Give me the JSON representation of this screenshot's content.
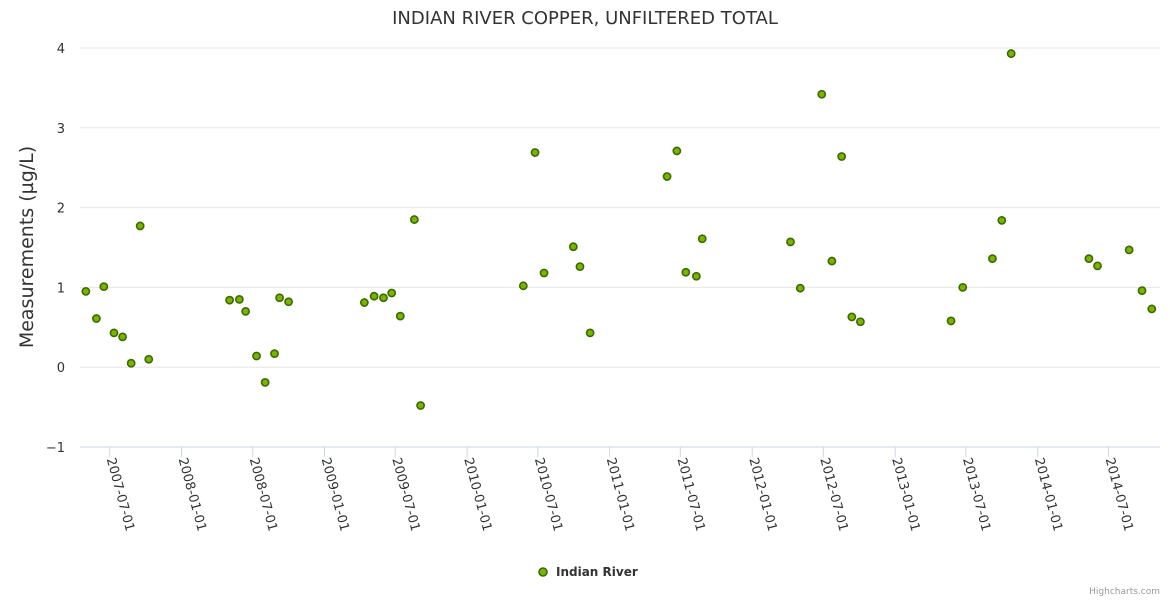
{
  "chart_data": {
    "type": "scatter",
    "title": "INDIAN RIVER COPPER, UNFILTERED TOTAL",
    "xlabel": "",
    "ylabel": "Measurements (µg/L)",
    "ylim": [
      -1,
      4
    ],
    "yticks": [
      "4",
      "3",
      "2",
      "1",
      "0",
      "−1"
    ],
    "xlim": [
      "2007-04-16",
      "2014-11-10"
    ],
    "xticks": [
      "2007-07-01",
      "2008-01-01",
      "2008-07-01",
      "2009-01-01",
      "2009-07-01",
      "2010-01-01",
      "2010-07-01",
      "2011-01-01",
      "2011-07-01",
      "2012-01-01",
      "2012-07-01",
      "2013-01-01",
      "2013-07-01",
      "2014-01-01",
      "2014-07-01"
    ],
    "grid": true,
    "legend": "bottom-center",
    "colors": {
      "marker_fill": "#7bb300",
      "marker_stroke": "#3a6b00",
      "grid": "#e6e6e6",
      "axis": "#ccd6eb"
    },
    "series": [
      {
        "name": "Indian River",
        "points": [
          {
            "x": "2007-05-01",
            "y": 0.95
          },
          {
            "x": "2007-05-28",
            "y": 0.61
          },
          {
            "x": "2007-06-16",
            "y": 1.01
          },
          {
            "x": "2007-07-12",
            "y": 0.43
          },
          {
            "x": "2007-08-03",
            "y": 0.38
          },
          {
            "x": "2007-08-25",
            "y": 0.05
          },
          {
            "x": "2007-09-17",
            "y": 1.77
          },
          {
            "x": "2007-10-09",
            "y": 0.1
          },
          {
            "x": "2008-05-03",
            "y": 0.84
          },
          {
            "x": "2008-05-28",
            "y": 0.85
          },
          {
            "x": "2008-06-13",
            "y": 0.7
          },
          {
            "x": "2008-07-11",
            "y": 0.14
          },
          {
            "x": "2008-08-02",
            "y": -0.19
          },
          {
            "x": "2008-08-26",
            "y": 0.17
          },
          {
            "x": "2008-09-08",
            "y": 0.87
          },
          {
            "x": "2008-10-01",
            "y": 0.82
          },
          {
            "x": "2009-04-13",
            "y": 0.81
          },
          {
            "x": "2009-05-08",
            "y": 0.89
          },
          {
            "x": "2009-06-01",
            "y": 0.87
          },
          {
            "x": "2009-06-22",
            "y": 0.93
          },
          {
            "x": "2009-07-14",
            "y": 0.64
          },
          {
            "x": "2009-08-19",
            "y": 1.85
          },
          {
            "x": "2009-09-04",
            "y": -0.48
          },
          {
            "x": "2010-05-25",
            "y": 1.02
          },
          {
            "x": "2010-06-24",
            "y": 2.69
          },
          {
            "x": "2010-07-17",
            "y": 1.18
          },
          {
            "x": "2010-09-30",
            "y": 1.51
          },
          {
            "x": "2010-10-17",
            "y": 1.26
          },
          {
            "x": "2010-11-12",
            "y": 0.43
          },
          {
            "x": "2011-05-28",
            "y": 2.39
          },
          {
            "x": "2011-06-22",
            "y": 2.71
          },
          {
            "x": "2011-07-15",
            "y": 1.19
          },
          {
            "x": "2011-08-11",
            "y": 1.14
          },
          {
            "x": "2011-08-26",
            "y": 1.61
          },
          {
            "x": "2012-04-08",
            "y": 1.57
          },
          {
            "x": "2012-05-03",
            "y": 0.99
          },
          {
            "x": "2012-06-27",
            "y": 3.42
          },
          {
            "x": "2012-07-23",
            "y": 1.33
          },
          {
            "x": "2012-08-17",
            "y": 2.64
          },
          {
            "x": "2012-09-12",
            "y": 0.63
          },
          {
            "x": "2012-10-04",
            "y": 0.57
          },
          {
            "x": "2013-05-24",
            "y": 0.58
          },
          {
            "x": "2013-06-23",
            "y": 1.0
          },
          {
            "x": "2013-09-07",
            "y": 1.36
          },
          {
            "x": "2013-10-01",
            "y": 1.84
          },
          {
            "x": "2013-10-25",
            "y": 3.93
          },
          {
            "x": "2014-05-12",
            "y": 1.36
          },
          {
            "x": "2014-06-03",
            "y": 1.27
          },
          {
            "x": "2014-08-23",
            "y": 1.47
          },
          {
            "x": "2014-09-25",
            "y": 0.96
          },
          {
            "x": "2014-10-20",
            "y": 0.73
          }
        ]
      }
    ]
  },
  "credits": "Highcharts.com"
}
